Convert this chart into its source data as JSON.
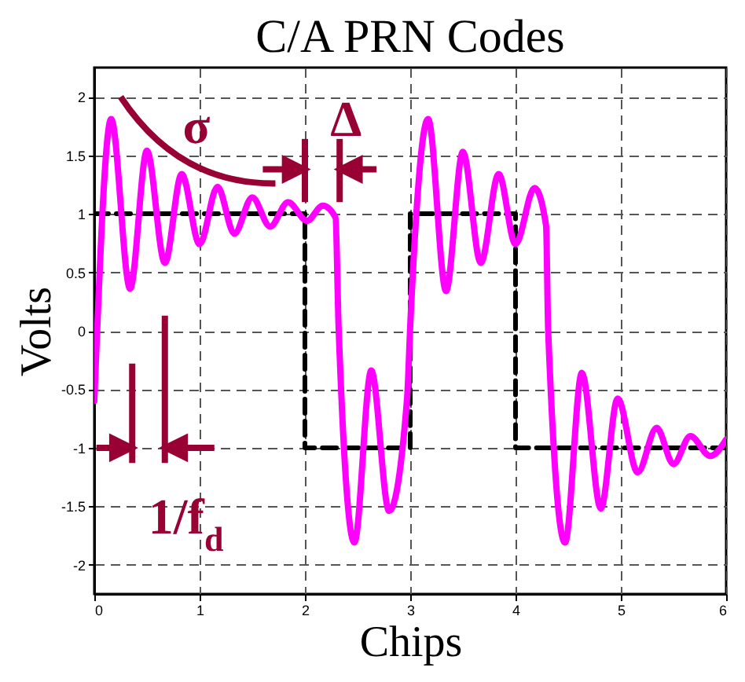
{
  "chart_data": {
    "type": "line",
    "title": "C/A PRN Codes",
    "xlabel": "Chips",
    "ylabel": "Volts",
    "xlim": [
      0,
      6
    ],
    "xticks": [
      0,
      1,
      2,
      3,
      4,
      5,
      6
    ],
    "ylim": [
      -2.25,
      2.25
    ],
    "yticks": [
      -2,
      -1.5,
      -1,
      -0.5,
      0,
      0.5,
      1,
      1.5,
      2
    ],
    "grid": true,
    "series": [
      {
        "type": "step",
        "color": "#000000",
        "line_style": "dashed",
        "x": [
          0,
          2,
          3,
          4,
          6
        ],
        "values": [
          1,
          -1,
          1,
          -1,
          -1
        ]
      },
      {
        "color": "#ff00ff",
        "line_style": "solid",
        "x": [
          0,
          0.16,
          0.34,
          0.5,
          0.67,
          0.83,
          1.0,
          1.17,
          1.33,
          1.5,
          1.67,
          1.84,
          2.02,
          2.17,
          2.29,
          2.32,
          2.47,
          2.63,
          2.8,
          2.97,
          3.0,
          3.17,
          3.34,
          3.5,
          3.67,
          3.84,
          4.0,
          4.18,
          4.29,
          4.31,
          4.47,
          4.63,
          4.81,
          4.97,
          5.16,
          5.34,
          5.5,
          5.66,
          5.85,
          6.0
        ],
        "values": [
          -0.6,
          1.81,
          0.36,
          1.54,
          0.58,
          1.34,
          0.74,
          1.23,
          0.83,
          1.14,
          0.89,
          1.1,
          0.94,
          1.07,
          0.97,
          0.03,
          -1.81,
          -0.34,
          -1.54,
          -0.58,
          0.04,
          1.81,
          0.34,
          1.53,
          0.58,
          1.34,
          0.74,
          1.22,
          0.9,
          0.0,
          -1.81,
          -0.36,
          -1.52,
          -0.58,
          -1.21,
          -0.83,
          -1.14,
          -0.9,
          -1.07,
          -0.93
        ]
      }
    ],
    "annotations": [
      "σ",
      "Δ",
      "1/f$_{d}$"
    ]
  }
}
